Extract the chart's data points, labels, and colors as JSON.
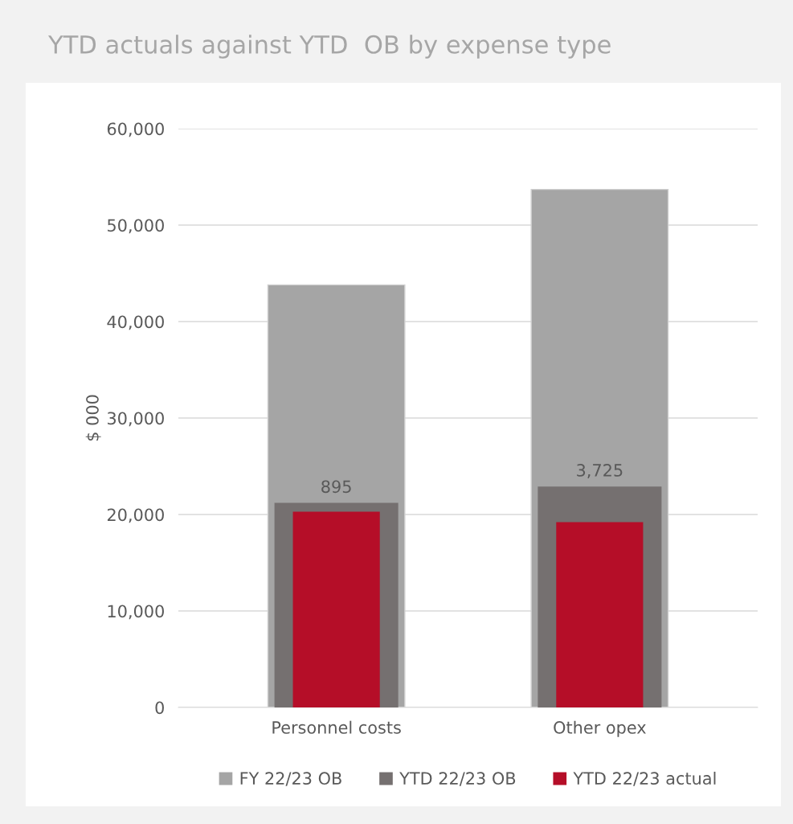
{
  "chart_data": {
    "type": "bar",
    "title": "YTD actuals against YTD  OB by expense type",
    "ylabel": "$ 000",
    "categories": [
      "Personnel costs",
      "Other opex"
    ],
    "series": [
      {
        "name": "FY 22/23 OB",
        "color": "#a5a5a5",
        "values": [
          43800,
          53700
        ]
      },
      {
        "name": "YTD 22/23 OB",
        "color": "#757070",
        "values": [
          21200,
          22900
        ]
      },
      {
        "name": "YTD 22/23 actual",
        "color": "#b50e28",
        "values": [
          20300,
          19200
        ]
      }
    ],
    "ylim": [
      0,
      60000
    ],
    "yticks": [
      {
        "value": 0,
        "label": "0"
      },
      {
        "value": 10000,
        "label": "10,000"
      },
      {
        "value": 20000,
        "label": "20,000"
      },
      {
        "value": 30000,
        "label": "30,000"
      },
      {
        "value": 40000,
        "label": "40,000"
      },
      {
        "value": 50000,
        "label": "50,000"
      },
      {
        "value": 60000,
        "label": "60,000"
      }
    ],
    "annotations": [
      {
        "text": "895",
        "x": "Personnel costs",
        "y": 21200
      },
      {
        "text": "3,725",
        "x": "Other opex",
        "y": 22900
      }
    ],
    "grid": "y",
    "legend": "bottom"
  }
}
